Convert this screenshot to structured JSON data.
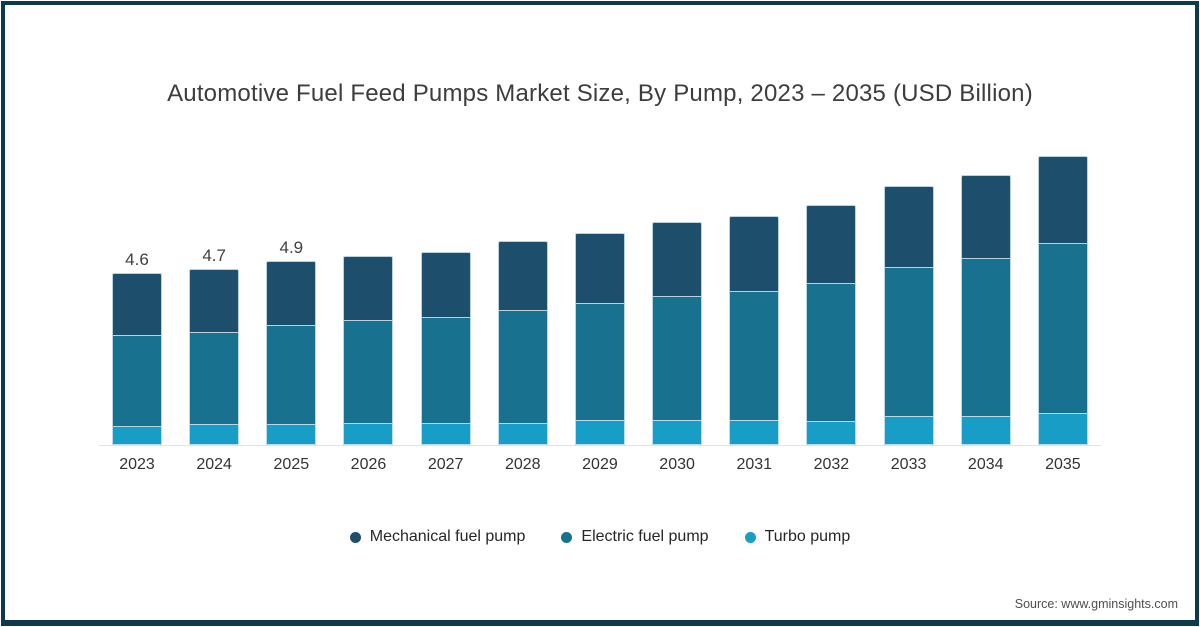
{
  "title": "Automotive Fuel Feed Pumps Market Size, By Pump, 2023 – 2035 (USD Billion)",
  "source": "Source: www.gminsights.com",
  "colors": {
    "mechanical_fuel_pump": "#1d4e6b",
    "electric_fuel_pump": "#17718f",
    "turbo_pump": "#189dc6",
    "frame": "#0f3a4c",
    "axis_line": "#dde4ea",
    "title_text": "#3d3d3d",
    "label_text": "#404040"
  },
  "legend": {
    "items": [
      {
        "label": "Mechanical fuel pump",
        "color": "#1d4e6b"
      },
      {
        "label": "Electric fuel pump",
        "color": "#17718f"
      },
      {
        "label": "Turbo pump",
        "color": "#189dc6"
      }
    ]
  },
  "chart_data": {
    "type": "bar",
    "stacked": true,
    "title": "Automotive Fuel Feed Pumps Market Size, By Pump, 2023 – 2035 (USD Billion)",
    "unit": "USD Billion",
    "categories": [
      "2023",
      "2024",
      "2025",
      "2026",
      "2027",
      "2028",
      "2029",
      "2030",
      "2031",
      "2032",
      "2033",
      "2034",
      "2035"
    ],
    "series": [
      {
        "name": "Mechanical fuel pump",
        "color": "#1d4e6b",
        "values": [
          1.69,
          1.72,
          1.73,
          1.74,
          1.75,
          1.87,
          1.89,
          1.99,
          2.01,
          2.1,
          2.18,
          2.25,
          2.33
        ]
      },
      {
        "name": "Electric fuel pump",
        "color": "#17718f",
        "values": [
          2.43,
          2.45,
          2.64,
          2.76,
          2.84,
          3.02,
          3.13,
          3.32,
          3.44,
          3.68,
          3.97,
          4.2,
          4.55
        ]
      },
      {
        "name": "Turbo pump",
        "color": "#189dc6",
        "values": [
          0.48,
          0.53,
          0.53,
          0.55,
          0.56,
          0.56,
          0.63,
          0.64,
          0.65,
          0.62,
          0.75,
          0.75,
          0.82
        ]
      }
    ],
    "stack_order_bottom_to_top": [
      "Turbo pump",
      "Electric fuel pump",
      "Mechanical fuel pump"
    ],
    "totals": [
      4.6,
      4.7,
      4.9,
      5.05,
      5.15,
      5.45,
      5.65,
      5.95,
      6.1,
      6.4,
      6.9,
      7.2,
      7.7
    ],
    "total_labels": [
      "4.6",
      "4.7",
      "4.9",
      "",
      "",
      "",
      "",
      "",
      "",
      "",
      "",
      "",
      ""
    ],
    "ylim": [
      0,
      8
    ],
    "grid": false,
    "legend_position": "bottom",
    "xlabel": "",
    "ylabel": ""
  }
}
